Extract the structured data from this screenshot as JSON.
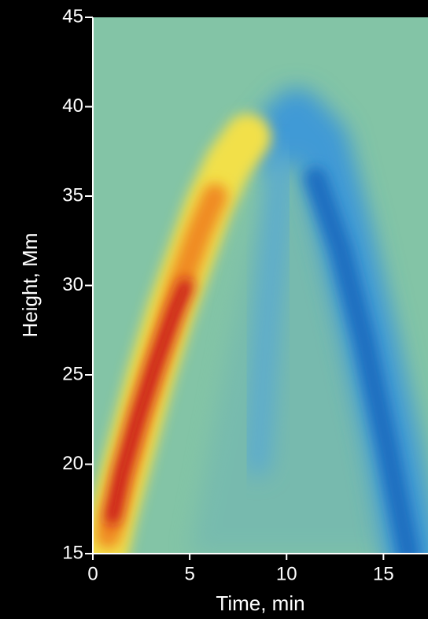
{
  "chart_data": {
    "type": "heatmap",
    "x_label": "Time, min",
    "y_label": "Height, Mm",
    "xlim": [
      0,
      17.3
    ],
    "ylim": [
      15,
      45
    ],
    "xticks": [
      0,
      5,
      10,
      15
    ],
    "yticks": [
      15,
      20,
      25,
      30,
      35,
      40,
      45
    ]
  }
}
